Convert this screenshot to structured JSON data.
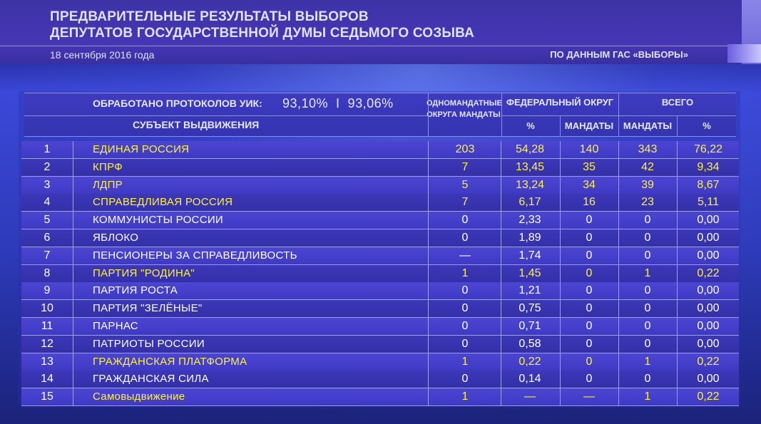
{
  "header": {
    "title_line1": "ПРЕДВАРИТЕЛЬНЫЕ РЕЗУЛЬТАТЫ ВЫБОРОВ",
    "title_line2": "ДЕПУТАТОВ ГОСУДАРСТВЕННОЙ ДУМЫ СЕДЬМОГО СОЗЫВА",
    "date": "18 сентября 2016 года",
    "source": "ПО ДАННЫМ ГАС «ВЫБОРЫ»"
  },
  "table": {
    "processed_label": "ОБРАБОТАНО ПРОТОКОЛОВ УИК:",
    "processed_values": "93,10%  I  93,06%",
    "subject_label": "СУБЪЕКТ ВЫДВИЖЕНИЯ",
    "single_mandate_label": "ОДНОМАНДАТНЫЕ ОКРУГА МАНДАТЫ",
    "federal_label": "ФЕДЕРАЛЬНЫЙ ОКРУГ",
    "total_label": "ВСЕГО",
    "pct_label": "%",
    "mandates_label": "МАНДАТЫ",
    "mandates_label2": "МАНДАТЫ",
    "pct_label2": "%",
    "rows": [
      {
        "n": "1",
        "name": "ЕДИНАЯ РОССИЯ",
        "odno": "203",
        "pct": "54,28",
        "m1": "140",
        "m2": "343",
        "pct2": "76,22",
        "hl": true
      },
      {
        "n": "2",
        "name": "КПРФ",
        "odno": "7",
        "pct": "13,45",
        "m1": "35",
        "m2": "42",
        "pct2": "9,34",
        "hl": true
      },
      {
        "n": "3",
        "name": "ЛДПР",
        "odno": "5",
        "pct": "13,24",
        "m1": "34",
        "m2": "39",
        "pct2": "8,67",
        "hl": true
      },
      {
        "n": "4",
        "name": "СПРАВЕДЛИВАЯ РОССИЯ",
        "odno": "7",
        "pct": "6,17",
        "m1": "16",
        "m2": "23",
        "pct2": "5,11",
        "hl": true
      },
      {
        "n": "5",
        "name": "КОММУНИСТЫ РОССИИ",
        "odno": "0",
        "pct": "2,33",
        "m1": "0",
        "m2": "0",
        "pct2": "0,00",
        "hl": false
      },
      {
        "n": "6",
        "name": "ЯБЛОКО",
        "odno": "0",
        "pct": "1,89",
        "m1": "0",
        "m2": "0",
        "pct2": "0,00",
        "hl": false
      },
      {
        "n": "7",
        "name": "ПЕНСИОНЕРЫ ЗА СПРАВЕДЛИВОСТЬ",
        "odno": "—",
        "pct": "1,74",
        "m1": "0",
        "m2": "0",
        "pct2": "0,00",
        "hl": false
      },
      {
        "n": "8",
        "name": "ПАРТИЯ \"РОДИНА\"",
        "odno": "1",
        "pct": "1,45",
        "m1": "0",
        "m2": "1",
        "pct2": "0,22",
        "hl": true
      },
      {
        "n": "9",
        "name": "ПАРТИЯ РОСТА",
        "odno": "0",
        "pct": "1,21",
        "m1": "0",
        "m2": "0",
        "pct2": "0,00",
        "hl": false
      },
      {
        "n": "10",
        "name": "ПАРТИЯ \"ЗЕЛЁНЫЕ\"",
        "odno": "0",
        "pct": "0,75",
        "m1": "0",
        "m2": "0",
        "pct2": "0,00",
        "hl": false
      },
      {
        "n": "11",
        "name": "ПАРНАС",
        "odno": "0",
        "pct": "0,71",
        "m1": "0",
        "m2": "0",
        "pct2": "0,00",
        "hl": false
      },
      {
        "n": "12",
        "name": "ПАТРИОТЫ РОССИИ",
        "odno": "0",
        "pct": "0,58",
        "m1": "0",
        "m2": "0",
        "pct2": "0,00",
        "hl": false
      },
      {
        "n": "13",
        "name": "ГРАЖДАНСКАЯ ПЛАТФОРМА",
        "odno": "1",
        "pct": "0,22",
        "m1": "0",
        "m2": "1",
        "pct2": "0,22",
        "hl": true
      },
      {
        "n": "14",
        "name": "ГРАЖДАНСКАЯ СИЛА",
        "odno": "0",
        "pct": "0,14",
        "m1": "0",
        "m2": "0",
        "pct2": "0,00",
        "hl": false
      },
      {
        "n": "15",
        "name": "Самовыдвижение",
        "odno": "1",
        "pct": "—",
        "m1": "—",
        "m2": "1",
        "pct2": "0,22",
        "hl": true
      }
    ]
  },
  "colors": {
    "highlight_text": "#fff23a",
    "normal_text": "#ffffff",
    "header_text": "#dfe2ff"
  }
}
